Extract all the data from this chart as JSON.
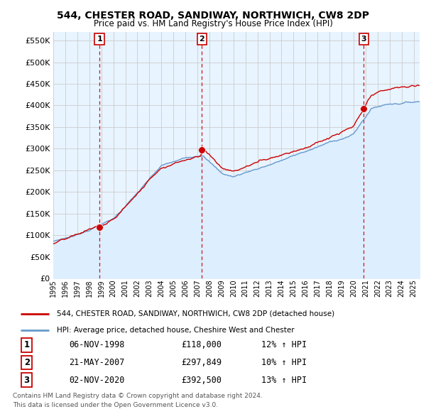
{
  "title": "544, CHESTER ROAD, SANDIWAY, NORTHWICH, CW8 2DP",
  "subtitle": "Price paid vs. HM Land Registry's House Price Index (HPI)",
  "legend_line1": "544, CHESTER ROAD, SANDIWAY, NORTHWICH, CW8 2DP (detached house)",
  "legend_line2": "HPI: Average price, detached house, Cheshire West and Chester",
  "transactions": [
    {
      "num": 1,
      "date": "06-NOV-1998",
      "price": "£118,000",
      "hpi": "12% ↑ HPI",
      "year": 1998.85,
      "y": 118000
    },
    {
      "num": 2,
      "date": "21-MAY-2007",
      "price": "£297,849",
      "hpi": "10% ↑ HPI",
      "year": 2007.38,
      "y": 297849
    },
    {
      "num": 3,
      "date": "02-NOV-2020",
      "price": "£392,500",
      "hpi": "13% ↑ HPI",
      "year": 2020.84,
      "y": 392500
    }
  ],
  "footer_line1": "Contains HM Land Registry data © Crown copyright and database right 2024.",
  "footer_line2": "This data is licensed under the Open Government Licence v3.0.",
  "ylim": [
    0,
    570000
  ],
  "yticks": [
    0,
    50000,
    100000,
    150000,
    200000,
    250000,
    300000,
    350000,
    400000,
    450000,
    500000,
    550000
  ],
  "xlim_start": 1995.0,
  "xlim_end": 2025.5,
  "red_color": "#cc0000",
  "blue_color": "#6699cc",
  "blue_fill": "#ddeeff",
  "grid_color": "#cccccc",
  "bg_color": "#ffffff",
  "dashed_color": "#cc0000"
}
